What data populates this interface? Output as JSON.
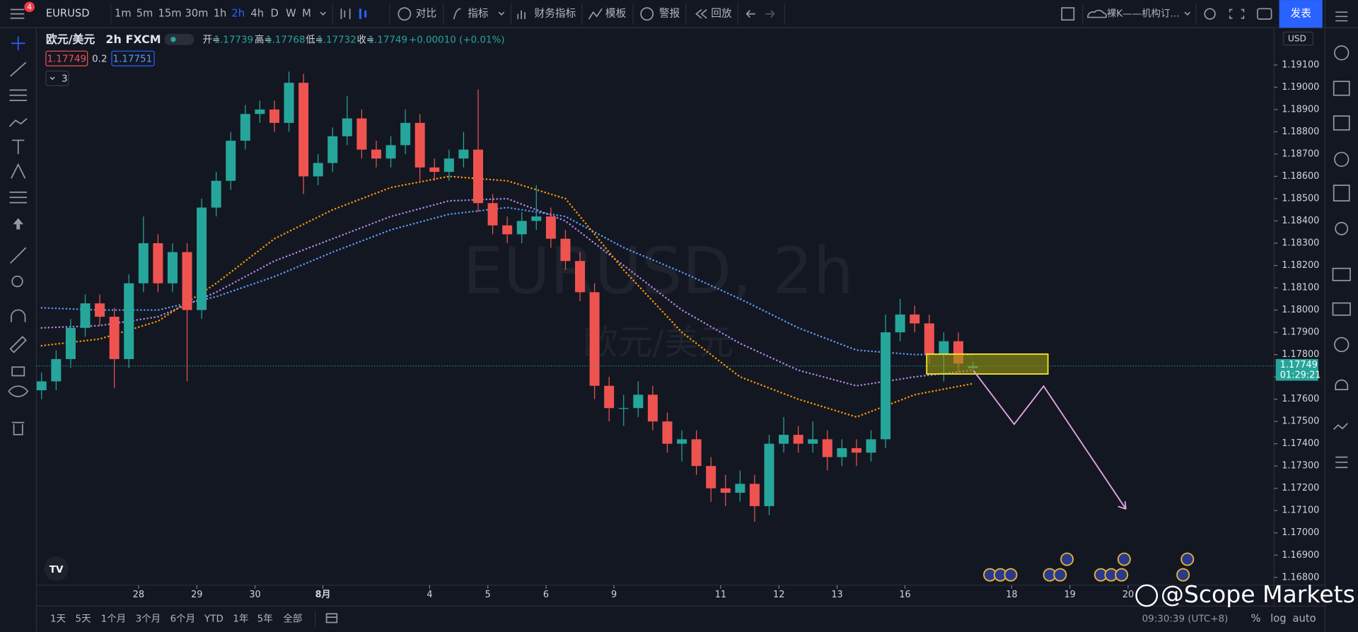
{
  "toolbar": {
    "symbol": "EURUSD",
    "notification_count": 4,
    "timeframes": [
      "1m",
      "5m",
      "15m",
      "30m",
      "1h",
      "2h",
      "4h",
      "D",
      "W",
      "M"
    ],
    "compare": "对比",
    "indicators": "指标",
    "financials": "财务指标",
    "templates": "模板",
    "alerts": "警报",
    "replay": "回放",
    "layout_name": "裸K——机构订...",
    "publish": "发表"
  },
  "legend": {
    "name": "欧元/美元",
    "interval": "2h",
    "source": "FXCM",
    "open_label": "开=",
    "open": "1.17739",
    "high_label": "高=",
    "high": "1.17768",
    "low_label": "低=",
    "low": "1.17732",
    "close_label": "收=",
    "close": "1.17749",
    "change": "+0.00010 (+0.01%)",
    "bid": "1.17749",
    "spread": "0.2",
    "ask": "1.17751",
    "indicator_count": "3"
  },
  "watermark": {
    "symbol_interval": "EURUSD, 2h",
    "description": "欧元/美元"
  },
  "price_axis": {
    "currency": "USD",
    "last_price": "1.17749",
    "countdown": "01:29:21"
  },
  "chart_data": {
    "type": "candlestick",
    "up_color": "#26a69a",
    "down_color": "#ef5350",
    "x": [
      0,
      3,
      6,
      9,
      12,
      15,
      18,
      21,
      24,
      27,
      30,
      33,
      36,
      39,
      42,
      45,
      48,
      51,
      54,
      57,
      60,
      63,
      66,
      69,
      72,
      75,
      78,
      81,
      84,
      87,
      90,
      93,
      96,
      99,
      102,
      105,
      108,
      111,
      114,
      117,
      120,
      123,
      126,
      129,
      132,
      135,
      138,
      141,
      144,
      147,
      150,
      153,
      156,
      159,
      162,
      165,
      168,
      171,
      174,
      177,
      180,
      183,
      186,
      189,
      192
    ],
    "open": [
      1.1764,
      1.1768,
      1.1778,
      1.1792,
      1.1803,
      1.1797,
      1.1778,
      1.1812,
      1.183,
      1.1812,
      1.1826,
      1.18,
      1.1846,
      1.1858,
      1.1876,
      1.1888,
      1.189,
      1.1884,
      1.1902,
      1.186,
      1.1866,
      1.1878,
      1.1886,
      1.1872,
      1.1868,
      1.1874,
      1.1884,
      1.1864,
      1.1862,
      1.1868,
      1.1872,
      1.1848,
      1.1838,
      1.1834,
      1.184,
      1.1842,
      1.1832,
      1.1822,
      1.1808,
      1.1766,
      1.1756,
      1.1756,
      1.1762,
      1.175,
      1.174,
      1.1742,
      1.173,
      1.172,
      1.1718,
      1.1722,
      1.1712,
      1.174,
      1.1744,
      1.174,
      1.1742,
      1.1734,
      1.1738,
      1.1736,
      1.1742,
      1.179,
      1.1798,
      1.1794,
      1.178,
      1.1786,
      1.17739
    ],
    "high": [
      1.1772,
      1.1782,
      1.1796,
      1.1807,
      1.1807,
      1.1801,
      1.1816,
      1.1842,
      1.1834,
      1.183,
      1.183,
      1.185,
      1.1862,
      1.188,
      1.1892,
      1.1894,
      1.1894,
      1.1907,
      1.1906,
      1.187,
      1.1882,
      1.1896,
      1.189,
      1.1876,
      1.1878,
      1.189,
      1.1888,
      1.1868,
      1.1872,
      1.188,
      1.1899,
      1.1852,
      1.1842,
      1.1844,
      1.1856,
      1.1846,
      1.1836,
      1.1826,
      1.1812,
      1.177,
      1.1762,
      1.1768,
      1.1766,
      1.1754,
      1.1746,
      1.1746,
      1.1734,
      1.1726,
      1.1728,
      1.1726,
      1.1744,
      1.1752,
      1.1748,
      1.175,
      1.1746,
      1.1742,
      1.1742,
      1.1746,
      1.1798,
      1.1805,
      1.1802,
      1.1798,
      1.179,
      1.179,
      1.17768
    ],
    "low": [
      1.176,
      1.1764,
      1.1774,
      1.1788,
      1.1793,
      1.1765,
      1.1774,
      1.1808,
      1.1808,
      1.1808,
      1.1768,
      1.1796,
      1.1842,
      1.1854,
      1.1872,
      1.1884,
      1.188,
      1.188,
      1.1852,
      1.1856,
      1.1862,
      1.1874,
      1.1868,
      1.1864,
      1.1864,
      1.187,
      1.1858,
      1.1858,
      1.1858,
      1.1864,
      1.1844,
      1.1834,
      1.183,
      1.183,
      1.1836,
      1.1828,
      1.1818,
      1.1804,
      1.176,
      1.175,
      1.1748,
      1.1752,
      1.1746,
      1.1736,
      1.1732,
      1.1726,
      1.1714,
      1.1712,
      1.1714,
      1.1705,
      1.1708,
      1.1736,
      1.1736,
      1.1736,
      1.1728,
      1.173,
      1.173,
      1.1732,
      1.1738,
      1.1786,
      1.179,
      1.1776,
      1.1768,
      1.1772,
      1.17732
    ],
    "close": [
      1.1768,
      1.1778,
      1.1792,
      1.1803,
      1.1797,
      1.1778,
      1.1812,
      1.183,
      1.1812,
      1.1826,
      1.18,
      1.1846,
      1.1858,
      1.1876,
      1.1888,
      1.189,
      1.1884,
      1.1902,
      1.186,
      1.1866,
      1.1878,
      1.1886,
      1.1872,
      1.1868,
      1.1874,
      1.1884,
      1.1864,
      1.1862,
      1.1868,
      1.1872,
      1.1848,
      1.1838,
      1.1834,
      1.184,
      1.1842,
      1.1832,
      1.1822,
      1.1808,
      1.1766,
      1.1756,
      1.1756,
      1.1762,
      1.175,
      1.174,
      1.1742,
      1.173,
      1.172,
      1.1718,
      1.1722,
      1.1712,
      1.174,
      1.1744,
      1.174,
      1.1742,
      1.1734,
      1.1738,
      1.1736,
      1.1742,
      1.179,
      1.1798,
      1.1794,
      1.178,
      1.1786,
      1.1776,
      1.17749
    ],
    "series": [
      {
        "color": "#5b9cf6",
        "x": [
          0,
          12,
          24,
          36,
          48,
          60,
          72,
          84,
          96,
          108,
          120,
          132,
          144,
          156,
          168,
          180,
          192
        ],
        "values": [
          1.1801,
          1.18,
          1.18,
          1.1806,
          1.1815,
          1.1826,
          1.1836,
          1.1843,
          1.1846,
          1.1842,
          1.1828,
          1.1817,
          1.1805,
          1.1792,
          1.1782,
          1.178,
          1.178
        ]
      },
      {
        "color": "#b388e8",
        "x": [
          0,
          12,
          24,
          36,
          48,
          60,
          72,
          84,
          96,
          108,
          120,
          132,
          144,
          156,
          168,
          180,
          192
        ],
        "values": [
          1.1792,
          1.1793,
          1.1797,
          1.1808,
          1.1822,
          1.1832,
          1.1842,
          1.1849,
          1.185,
          1.184,
          1.182,
          1.18,
          1.1785,
          1.1773,
          1.1766,
          1.177,
          1.1773
        ]
      },
      {
        "color": "#ff9800",
        "x": [
          0,
          12,
          24,
          36,
          48,
          60,
          72,
          84,
          96,
          108,
          120,
          132,
          144,
          156,
          168,
          180,
          192
        ],
        "values": [
          1.1784,
          1.1787,
          1.1795,
          1.1812,
          1.1832,
          1.1845,
          1.1855,
          1.186,
          1.1858,
          1.185,
          1.1818,
          1.179,
          1.177,
          1.176,
          1.1752,
          1.1762,
          1.1767
        ]
      }
    ],
    "xlim": [
      0,
      253
    ],
    "xticks": [
      {
        "value": 20,
        "label": "28"
      },
      {
        "value": 32,
        "label": "29"
      },
      {
        "value": 44,
        "label": "30"
      },
      {
        "value": 58,
        "label": "8月"
      },
      {
        "value": 80,
        "label": "4"
      },
      {
        "value": 92,
        "label": "5"
      },
      {
        "value": 104,
        "label": "6"
      },
      {
        "value": 118,
        "label": "9"
      },
      {
        "value": 140,
        "label": "11"
      },
      {
        "value": 152,
        "label": "12"
      },
      {
        "value": 164,
        "label": "13"
      },
      {
        "value": 178,
        "label": "16"
      },
      {
        "value": 200,
        "label": "18"
      },
      {
        "value": 212,
        "label": "19"
      },
      {
        "value": 224,
        "label": "20"
      }
    ],
    "ylim": [
      1.16765,
      1.19267
    ],
    "yticks": [
      {
        "value": 1.168,
        "label": "1.16800"
      },
      {
        "value": 1.169,
        "label": "1.16900"
      },
      {
        "value": 1.17,
        "label": "1.17000"
      },
      {
        "value": 1.171,
        "label": "1.17100"
      },
      {
        "value": 1.172,
        "label": "1.17200"
      },
      {
        "value": 1.173,
        "label": "1.17300"
      },
      {
        "value": 1.174,
        "label": "1.17400"
      },
      {
        "value": 1.175,
        "label": "1.17500"
      },
      {
        "value": 1.176,
        "label": "1.17600"
      },
      {
        "value": 1.177,
        "label": "1.17700"
      },
      {
        "value": 1.178,
        "label": "1.17800"
      },
      {
        "value": 1.179,
        "label": "1.17900"
      },
      {
        "value": 1.18,
        "label": "1.18000"
      },
      {
        "value": 1.181,
        "label": "1.18100"
      },
      {
        "value": 1.182,
        "label": "1.18200"
      },
      {
        "value": 1.183,
        "label": "1.18300"
      },
      {
        "value": 1.184,
        "label": "1.18400"
      },
      {
        "value": 1.185,
        "label": "1.18500"
      },
      {
        "value": 1.186,
        "label": "1.18600"
      },
      {
        "value": 1.187,
        "label": "1.18700"
      },
      {
        "value": 1.188,
        "label": "1.18800"
      },
      {
        "value": 1.189,
        "label": "1.18900"
      },
      {
        "value": 1.19,
        "label": "1.19000"
      },
      {
        "value": 1.191,
        "label": "1.19100"
      }
    ]
  },
  "bottom_bar": {
    "ranges": [
      "1天",
      "5天",
      "1个月",
      "3个月",
      "6个月",
      "YTD",
      "1年",
      "5年",
      "全部"
    ],
    "clock": "09:30:39 (UTC+8)",
    "percent": "%",
    "log": "log",
    "auto": "auto"
  },
  "credit": "@Scope Markets"
}
